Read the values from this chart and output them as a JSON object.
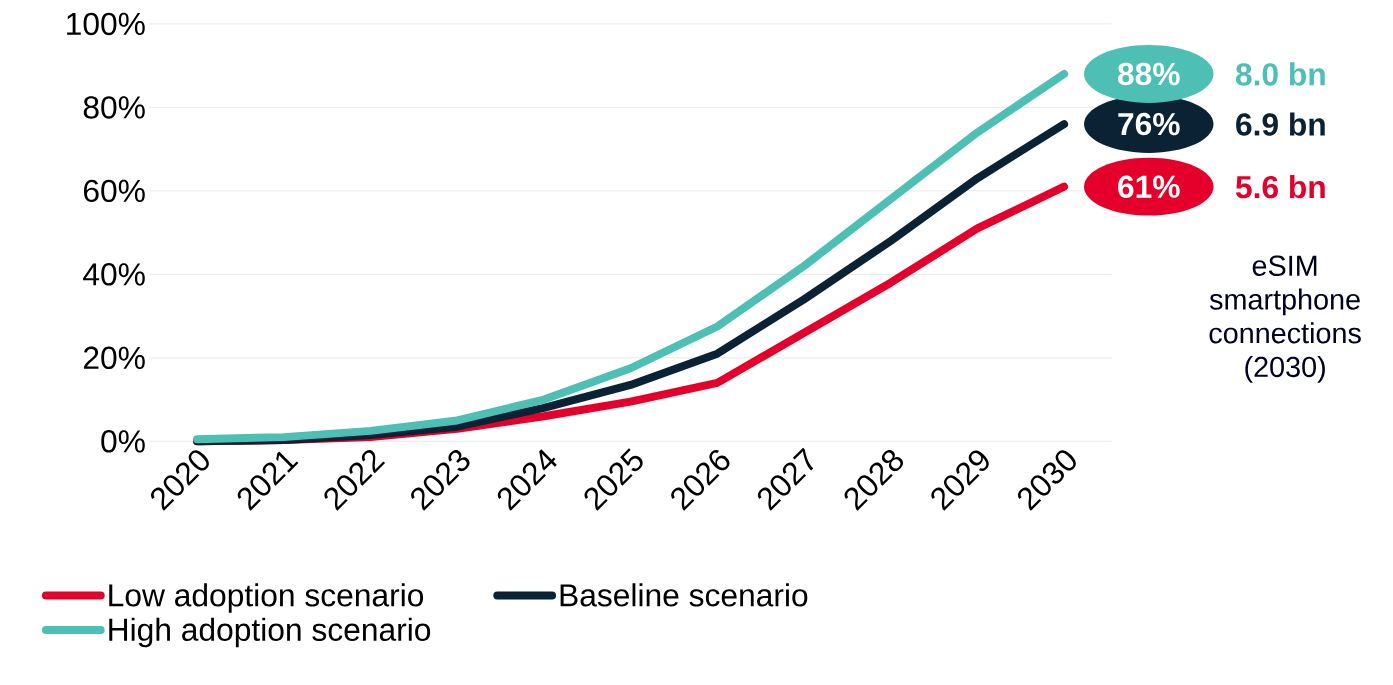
{
  "chart_data": {
    "type": "line",
    "categories": [
      "2020",
      "2021",
      "2022",
      "2023",
      "2024",
      "2025",
      "2026",
      "2027",
      "2028",
      "2029",
      "2030"
    ],
    "series": [
      {
        "name": "Low adoption scenario",
        "color": "#e4002b",
        "values": [
          0,
          0.3,
          1,
          3,
          6,
          9.5,
          14,
          26,
          38,
          51,
          61
        ],
        "value_labels": [
          null,
          null,
          null,
          null,
          null,
          null,
          null,
          null,
          null,
          null,
          "61%"
        ]
      },
      {
        "name": "Baseline scenario",
        "color": "#0b2235",
        "values": [
          0,
          0.3,
          1.5,
          3.5,
          8,
          13.5,
          21,
          34,
          48,
          63,
          76
        ],
        "value_labels": [
          null,
          null,
          null,
          null,
          null,
          null,
          null,
          null,
          null,
          null,
          "76%"
        ]
      },
      {
        "name": "High adoption scenario",
        "color": "#4dbfb4",
        "values": [
          0.5,
          1,
          2.5,
          5,
          10,
          17.5,
          27.5,
          42,
          58,
          74,
          88
        ],
        "value_labels": [
          null,
          null,
          null,
          null,
          null,
          null,
          null,
          null,
          null,
          null,
          "88%"
        ]
      }
    ],
    "ylim": [
      0,
      100
    ],
    "yticks": [
      {
        "value": 0,
        "label": "0%"
      },
      {
        "value": 20,
        "label": "20%"
      },
      {
        "value": 40,
        "label": "40%"
      },
      {
        "value": 60,
        "label": "60%"
      },
      {
        "value": 80,
        "label": "80%"
      },
      {
        "value": 100,
        "label": "100%"
      }
    ],
    "grid": "y",
    "legend": "bottom",
    "marker": "none",
    "line_style": "solid",
    "annotations": [
      "8.0 bn",
      "6.9 bn",
      "5.6 bn",
      "eSIM smartphone connections (2030)"
    ]
  }
}
